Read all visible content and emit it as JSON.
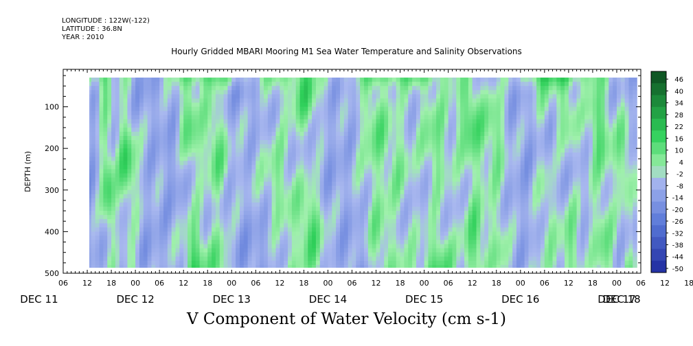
{
  "header": {
    "longitude": "LONGITUDE : 122W(-122)",
    "latitude": "LATITUDE : 36.8N",
    "year": "YEAR : 2010"
  },
  "chart_data": {
    "type": "heatmap",
    "title": "Hourly Gridded MBARI Mooring M1 Sea Water Temperature and Salinity Observations",
    "xlabel": "V Component of Water Velocity (cm s-1)",
    "ylabel": "DEPTH (m)",
    "x_hour_ticks": [
      "06",
      "12",
      "18",
      "00",
      "06",
      "12",
      "18",
      "00",
      "06",
      "12",
      "18",
      "00",
      "06",
      "12",
      "18",
      "00",
      "06",
      "12",
      "18",
      "00",
      "06",
      "12",
      "18",
      "00",
      "06",
      "12",
      "18",
      "00",
      "06",
      "12",
      "18",
      "00",
      "06"
    ],
    "x_day_labels": [
      "DEC 11",
      "DEC 12",
      "DEC 13",
      "DEC 14",
      "DEC 15",
      "DEC 16",
      "DEC 17",
      "DEC 18"
    ],
    "x_range_hours_from_dec11_00": [
      6,
      150
    ],
    "data_range_hours_from_dec11_00": [
      12,
      149
    ],
    "ylim": [
      500,
      10
    ],
    "y_ticks": [
      "100",
      "200",
      "300",
      "400",
      "500"
    ],
    "data_depth_range": [
      20,
      490
    ],
    "colorbar_levels": [
      "46",
      "40",
      "34",
      "28",
      "22",
      "16",
      "10",
      "4",
      "-2",
      "-8",
      "-14",
      "-20",
      "-26",
      "-32",
      "-38",
      "-44",
      "-50"
    ],
    "value_range": [
      -50,
      52
    ],
    "colors": {
      "negative_strong": "#1e2a9e",
      "negative_mid": "#5a78d8",
      "negative_weak": "#a9b8ef",
      "positive_weak": "#9ff0ab",
      "positive_mid": "#2fd05a",
      "positive_strong": "#0c4a1e"
    },
    "green_streaks_hours_from_dec11_00": [
      17,
      22,
      38,
      44,
      60,
      67,
      84,
      90,
      99,
      108,
      114,
      126,
      132,
      140,
      146
    ],
    "grid": false,
    "legend": "right colorbar"
  }
}
